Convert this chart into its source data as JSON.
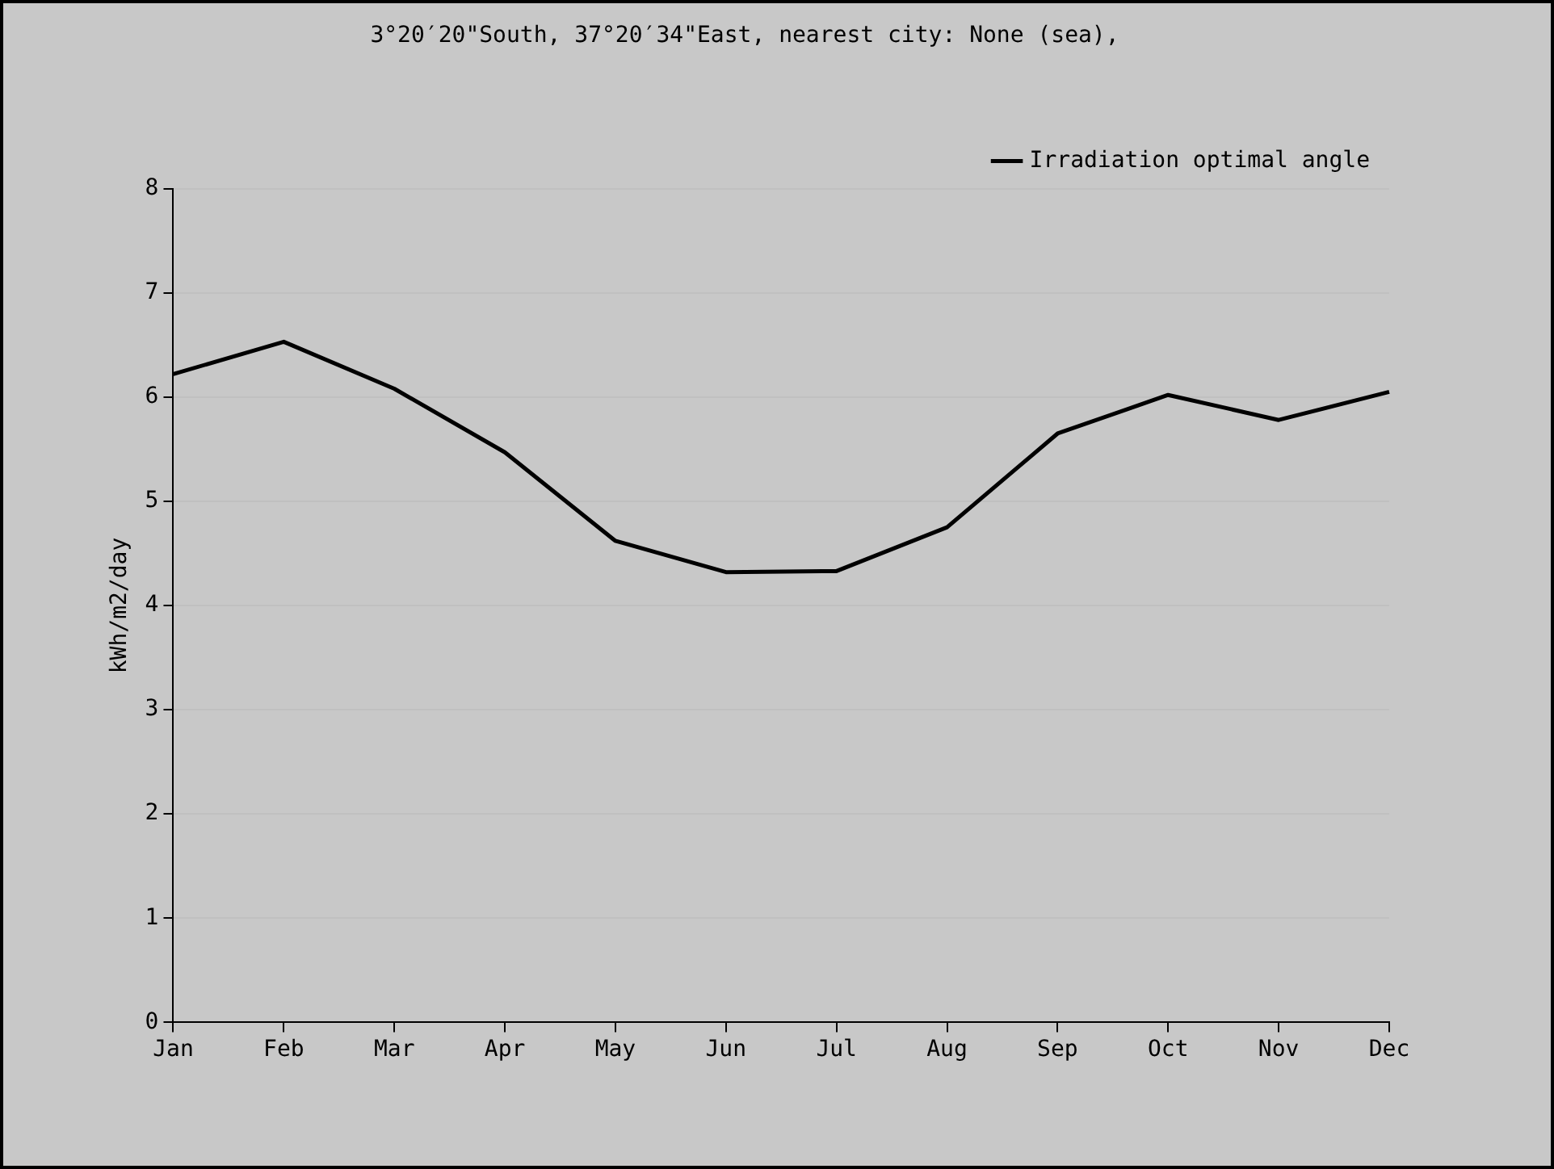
{
  "chart_data": {
    "type": "line",
    "title": "3°20′20\"South, 37°20′34\"East, nearest city: None (sea),",
    "ylabel": "kWh/m2/day",
    "categories": [
      "Jan",
      "Feb",
      "Mar",
      "Apr",
      "May",
      "Jun",
      "Jul",
      "Aug",
      "Sep",
      "Oct",
      "Nov",
      "Dec"
    ],
    "series": [
      {
        "name": "Irradiation optimal angle",
        "color": "#000000",
        "values": [
          6.22,
          6.53,
          6.08,
          5.47,
          4.62,
          4.32,
          4.33,
          4.75,
          5.65,
          6.02,
          5.78,
          6.05
        ]
      }
    ],
    "ylim": [
      0,
      8
    ],
    "yticks": [
      0,
      1,
      2,
      3,
      4,
      5,
      6,
      7,
      8
    ],
    "grid": "y",
    "legend": "top right",
    "marker": "none",
    "line_style": "solid"
  }
}
